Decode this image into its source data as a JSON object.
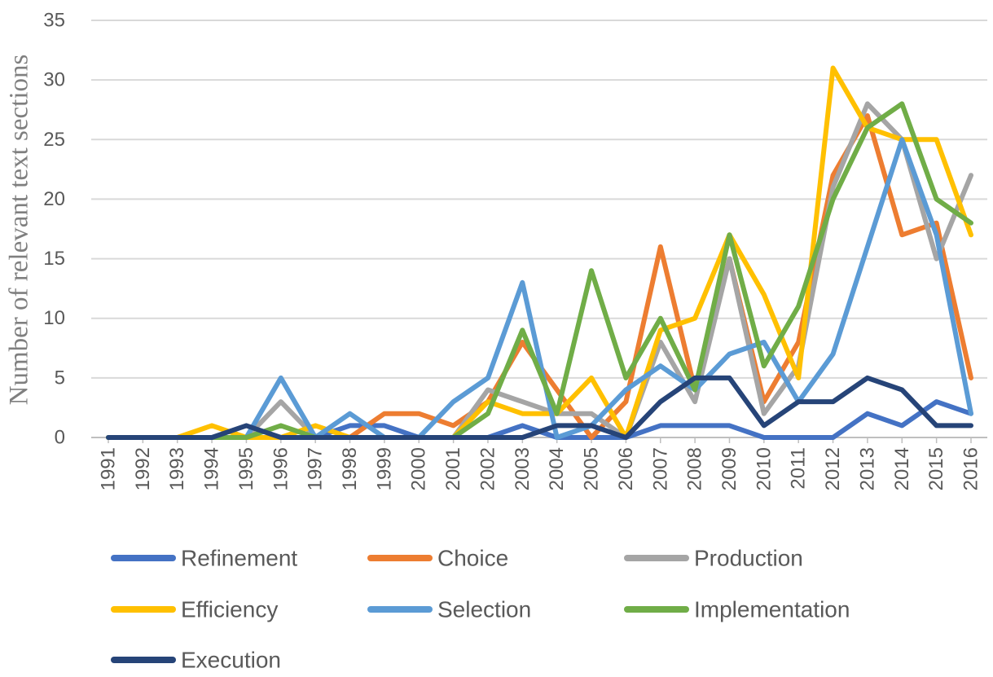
{
  "chart_data": {
    "type": "line",
    "title": "",
    "xlabel": "",
    "ylabel": "Number of relevant text sections",
    "ylim": [
      0,
      35
    ],
    "yticks": [
      0,
      5,
      10,
      15,
      20,
      25,
      30,
      35
    ],
    "grid": "horizontal",
    "legend_position": "bottom",
    "categories": [
      "1991",
      "1992",
      "1993",
      "1994",
      "1995",
      "1996",
      "1997",
      "1998",
      "1999",
      "2000",
      "2001",
      "2002",
      "2003",
      "2004",
      "2005",
      "2006",
      "2007",
      "2008",
      "2009",
      "2010",
      "2011",
      "2012",
      "2013",
      "2014",
      "2015",
      "2016"
    ],
    "series": [
      {
        "name": "Refinement",
        "color": "#4472C4",
        "values": [
          0,
          0,
          0,
          0,
          0,
          0,
          0,
          1,
          1,
          0,
          0,
          0,
          1,
          0,
          0,
          0,
          1,
          1,
          1,
          0,
          0,
          0,
          2,
          1,
          3,
          2
        ]
      },
      {
        "name": "Choice",
        "color": "#ED7D31",
        "values": [
          0,
          0,
          0,
          0,
          0,
          0,
          0,
          0,
          2,
          2,
          1,
          3,
          8,
          4,
          0,
          3,
          16,
          4,
          15,
          3,
          8,
          22,
          27,
          17,
          18,
          5
        ]
      },
      {
        "name": "Production",
        "color": "#A5A5A5",
        "values": [
          0,
          0,
          0,
          0,
          0,
          3,
          0,
          0,
          0,
          0,
          0,
          4,
          3,
          2,
          2,
          0,
          8,
          3,
          15,
          2,
          6,
          21,
          28,
          25,
          15,
          22
        ]
      },
      {
        "name": "Efficiency",
        "color": "#FFC000",
        "values": [
          0,
          0,
          0,
          1,
          0,
          0,
          1,
          0,
          0,
          0,
          0,
          3,
          2,
          2,
          5,
          0,
          9,
          10,
          17,
          12,
          5,
          31,
          26,
          25,
          25,
          17
        ]
      },
      {
        "name": "Selection",
        "color": "#5B9BD5",
        "values": [
          0,
          0,
          0,
          0,
          0,
          5,
          0,
          2,
          0,
          0,
          3,
          5,
          13,
          0,
          1,
          4,
          6,
          4,
          7,
          8,
          3,
          7,
          16,
          25,
          17,
          2
        ]
      },
      {
        "name": "Implementation",
        "color": "#70AD47",
        "values": [
          0,
          0,
          0,
          0,
          0,
          1,
          0,
          0,
          0,
          0,
          0,
          2,
          9,
          2,
          14,
          5,
          10,
          4,
          17,
          6,
          11,
          20,
          26,
          28,
          20,
          18
        ]
      },
      {
        "name": "Execution",
        "color": "#264478",
        "values": [
          0,
          0,
          0,
          0,
          1,
          0,
          0,
          0,
          0,
          0,
          0,
          0,
          0,
          1,
          1,
          0,
          3,
          5,
          5,
          1,
          3,
          3,
          5,
          4,
          1,
          1
        ]
      }
    ]
  },
  "colors": {
    "gridline": "#d9d9d9",
    "axis": "#bfbfbf",
    "tick_text": "#595959",
    "axis_title_text": "#7f7f7f"
  }
}
